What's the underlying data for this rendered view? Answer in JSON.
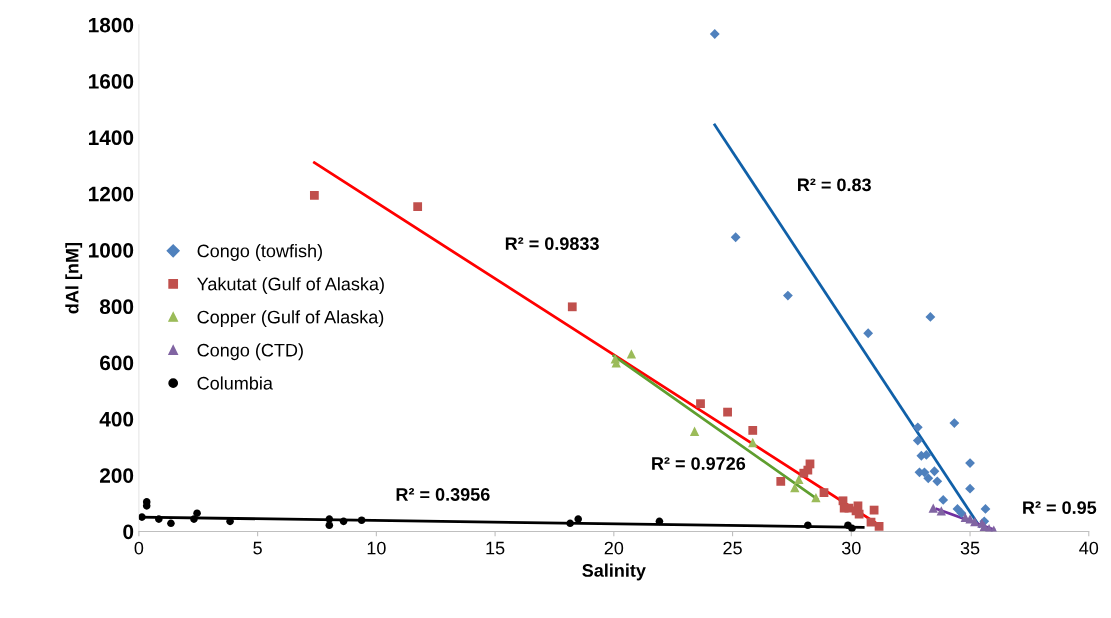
{
  "chart_data": {
    "type": "scatter",
    "xlabel": "Salinity",
    "ylabel": "dAl [nM]",
    "xlim": [
      0,
      40
    ],
    "xticks": [
      0,
      5,
      10,
      15,
      20,
      25,
      30,
      35,
      40
    ],
    "ylim": [
      0,
      1800
    ],
    "yticks": [
      0,
      200,
      400,
      600,
      800,
      1000,
      1200,
      1400,
      1600,
      1800
    ],
    "grid": false,
    "legend": "left",
    "series": [
      {
        "name": "Congo (towfish)",
        "color": "#4f81bd",
        "marker": "diamond",
        "x": [
          24.25,
          25.13,
          27.33,
          30.71,
          33.33,
          32.8,
          32.8,
          32.95,
          33.16,
          32.87,
          33.08,
          33.24,
          33.5,
          33.62,
          34.34,
          35.0,
          35.0,
          33.87,
          34.47,
          34.64,
          35.65,
          35.6
        ],
        "values": [
          1767,
          1045,
          838,
          704,
          762,
          370,
          323,
          269,
          272,
          210,
          210,
          189,
          214,
          178,
          385,
          243,
          152,
          112,
          80,
          65,
          80,
          36
        ]
      },
      {
        "name": "Yakutat (Gulf of Alaska)",
        "color": "#c0504d",
        "marker": "square",
        "x": [
          7.39,
          11.74,
          18.25,
          23.65,
          24.79,
          25.85,
          27.03,
          28.26,
          28.17,
          28.0,
          28.85,
          29.65,
          29.7,
          29.9,
          30.28,
          30.33,
          30.96,
          30.83,
          31.17,
          30.2
        ],
        "values": [
          1194,
          1154,
          798,
          454,
          424,
          359,
          178,
          240,
          218,
          207,
          138,
          109,
          83,
          83,
          91,
          62,
          76,
          33,
          18,
          73
        ]
      },
      {
        "name": "Copper (Gulf of Alaska)",
        "color": "#9bbb59",
        "marker": "triangle",
        "x": [
          20.06,
          20.1,
          20.74,
          23.4,
          25.85,
          27.79,
          27.62,
          28.51
        ],
        "values": [
          613,
          599,
          631,
          356,
          316,
          185,
          156,
          120
        ]
      },
      {
        "name": "Congo (CTD)",
        "color": "#8064a2",
        "marker": "triangle",
        "x": [
          33.45,
          33.79,
          34.8,
          35.0,
          35.2,
          35.5,
          35.6,
          35.8,
          36.0
        ],
        "values": [
          83,
          73,
          50,
          45,
          35,
          30,
          18,
          10,
          5
        ]
      },
      {
        "name": "Columbia",
        "color": "#000000",
        "marker": "circle",
        "x": [
          0.13,
          0.33,
          0.33,
          0.84,
          1.35,
          2.32,
          2.45,
          3.84,
          8.02,
          8.02,
          8.62,
          9.38,
          18.16,
          18.5,
          21.92,
          28.17,
          29.86,
          30.03
        ],
        "values": [
          51,
          105,
          91,
          44,
          29,
          44,
          65,
          36,
          44,
          22,
          36,
          40,
          29,
          44,
          36,
          22,
          22,
          11
        ]
      },
      {
        "type": "line",
        "color": "#1060a8",
        "marker": "none",
        "x": [
          24.25,
          35.4
        ],
        "values": [
          1444,
          18
        ]
      },
      {
        "type": "line",
        "color": "#ff0000",
        "marker": "none",
        "x": [
          7.39,
          31.26
        ],
        "values": [
          1310,
          18
        ]
      },
      {
        "type": "line",
        "color": "#5f9e2f",
        "marker": "none",
        "x": [
          20.0,
          28.55
        ],
        "values": [
          624,
          116
        ]
      },
      {
        "type": "line",
        "color": "#7030a0",
        "marker": "none",
        "x": [
          33.6,
          36.0
        ],
        "values": [
          80,
          7
        ]
      },
      {
        "type": "line",
        "color": "#000000",
        "marker": "none",
        "x": [
          0.0,
          30.5
        ],
        "values": [
          51,
          15
        ]
      }
    ],
    "annotations": [
      "R² = 0.83",
      "R² = 0.9833",
      "R² = 0.9726",
      "R² = 0.95",
      "R² = 0.3956"
    ]
  }
}
